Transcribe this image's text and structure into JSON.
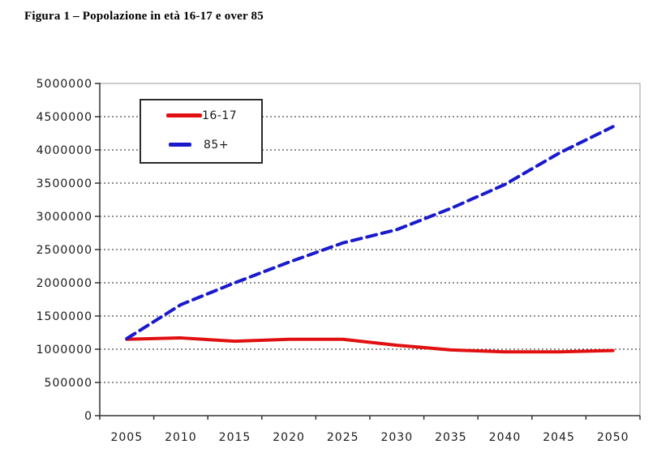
{
  "page": {
    "title": "Figura 1 – Popolazione in età 16-17 e over 85"
  },
  "chart_data": {
    "type": "line",
    "title": "Figura 1 – Popolazione in età 16-17 e over 85",
    "categories": [
      "2005",
      "2010",
      "2015",
      "2020",
      "2025",
      "2030",
      "2035",
      "2040",
      "2045",
      "2050"
    ],
    "series": [
      {
        "name": "16-17",
        "color": "#e01010",
        "style": "solid",
        "values": [
          1150000,
          1170000,
          1120000,
          1150000,
          1150000,
          1060000,
          990000,
          960000,
          960000,
          980000
        ]
      },
      {
        "name": "85+",
        "color": "#1a1acd",
        "style": "dashed",
        "values": [
          1160000,
          1670000,
          2000000,
          2310000,
          2600000,
          2800000,
          3120000,
          3480000,
          3950000,
          4350000
        ]
      }
    ],
    "xlabel": "",
    "ylabel": "",
    "ylim": [
      0,
      5000000
    ],
    "y_tick_step": 500000,
    "y_tick_labels": [
      "0",
      "500000",
      "1000000",
      "1500000",
      "2000000",
      "2500000",
      "3000000",
      "3500000",
      "4000000",
      "4500000",
      "5000000"
    ],
    "grid": "horizontal-dashed",
    "gridline_color": "#1f1f1f",
    "axis_color": "#333333",
    "plot_border_color": "#9a9a9a",
    "text_color": "#1a1a1a",
    "legend_position": "top-left-inside"
  }
}
